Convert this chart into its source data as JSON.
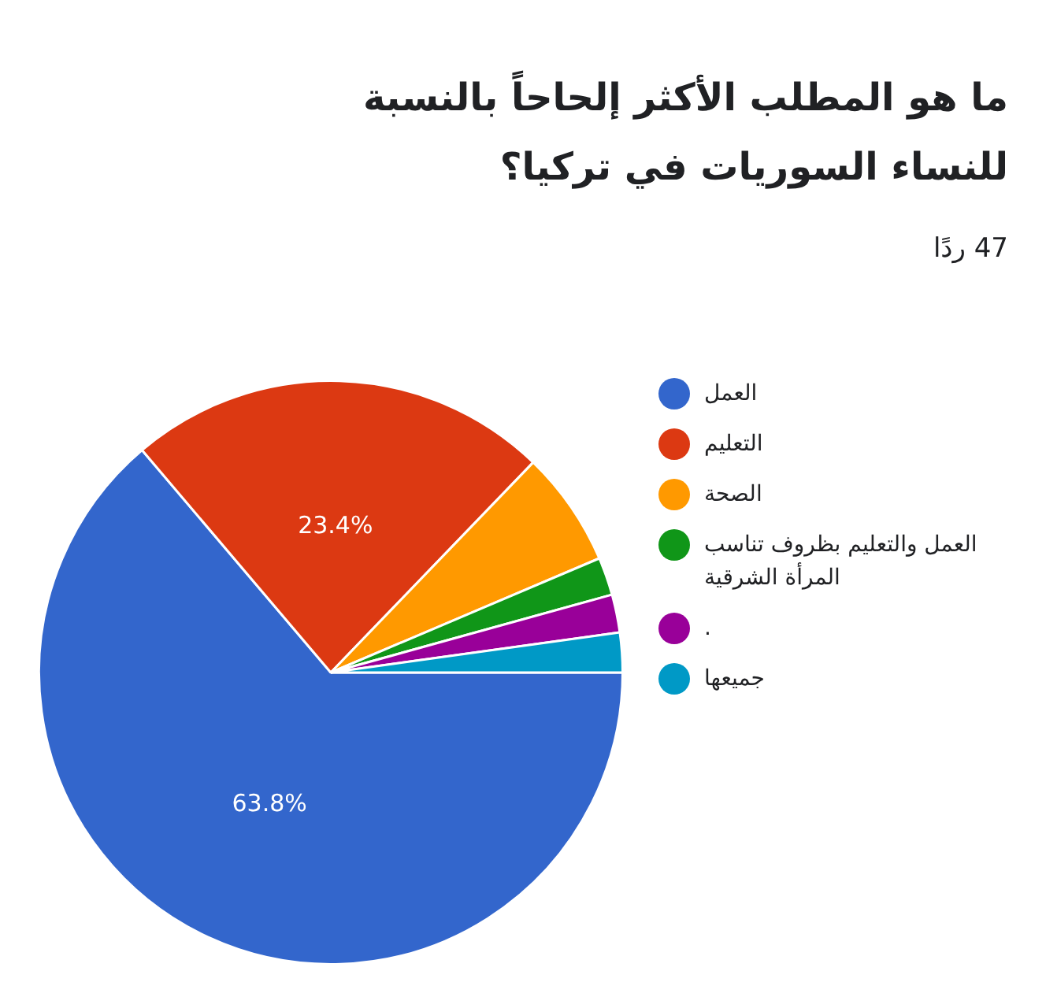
{
  "chart_data": {
    "type": "pie",
    "title": "ما هو المطلب الأكثر إلحاحاً بالنسبة للنساء السوريات في تركيا؟",
    "subtitle": "47 ردًا",
    "categories": [
      "العمل",
      "التعليم",
      "الصحة",
      "العمل والتعليم بظروف تناسب المرأة الشرقية",
      ".",
      "جميعها"
    ],
    "values": [
      63.8,
      23.4,
      6.4,
      2.1,
      2.1,
      2.2
    ],
    "value_labels": [
      "63.8%",
      "23.4%",
      null,
      null,
      null,
      null
    ],
    "colors": [
      "#3366cc",
      "#dc3912",
      "#ff9900",
      "#109618",
      "#990099",
      "#0099c6"
    ],
    "legend": "right"
  }
}
